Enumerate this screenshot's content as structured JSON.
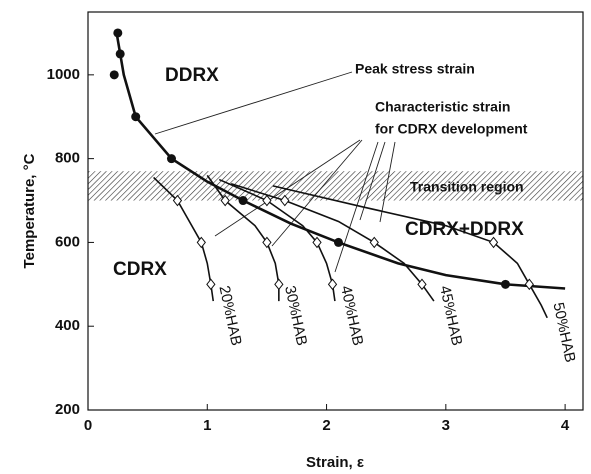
{
  "chart_data": {
    "type": "line",
    "xlabel": "Strain, ε",
    "ylabel": "Temperature, °C",
    "xlim": [
      0,
      4.15
    ],
    "ylim": [
      200,
      1150
    ],
    "xticks": [
      0,
      1,
      2,
      3,
      4
    ],
    "yticks": [
      200,
      400,
      600,
      800,
      1000
    ],
    "transition_band": [
      700,
      770
    ],
    "annotations": [
      "DDRX",
      "CDRX",
      "CDRX+DDRX",
      "Peak stress strain",
      "Characteristic strain",
      "for CDRX development",
      "Transition region"
    ],
    "series": [
      {
        "marker": "circle",
        "color": "#111111",
        "x": [
          0.25,
          0.27,
          0.22,
          0.4,
          0.7,
          1.3,
          2.1,
          3.5
        ],
        "values": [
          1100,
          1050,
          1000,
          900,
          800,
          700,
          600,
          500
        ]
      },
      {
        "marker": "none",
        "color": "#111111",
        "x": [
          0.24,
          0.3,
          0.4,
          0.55,
          0.7,
          1.0,
          1.3,
          1.7,
          2.1,
          2.6,
          3.0,
          3.5,
          4.0
        ],
        "values": [
          1100,
          1000,
          900,
          850,
          800,
          745,
          700,
          645,
          600,
          550,
          522,
          500,
          490
        ]
      },
      {
        "name": "20%HAB",
        "marker": "diamond",
        "color": "#111111",
        "x": [
          0.55,
          0.75,
          0.95,
          1.0,
          1.03,
          1.05
        ],
        "values": [
          755,
          700,
          600,
          550,
          500,
          460
        ]
      },
      {
        "name": "30%HAB",
        "marker": "diamond",
        "color": "#111111",
        "x": [
          1.0,
          1.15,
          1.4,
          1.5,
          1.57,
          1.6,
          1.6
        ],
        "values": [
          760,
          700,
          640,
          600,
          550,
          500,
          460
        ]
      },
      {
        "name": "40%HAB",
        "marker": "diamond",
        "color": "#111111",
        "x": [
          1.1,
          1.5,
          1.8,
          1.92,
          2.0,
          2.05,
          2.07
        ],
        "values": [
          750,
          700,
          640,
          600,
          550,
          500,
          460
        ]
      },
      {
        "name": "45%HAB",
        "marker": "diamond",
        "color": "#111111",
        "x": [
          1.2,
          1.65,
          2.1,
          2.4,
          2.65,
          2.8,
          2.9
        ],
        "values": [
          740,
          700,
          650,
          600,
          550,
          500,
          460
        ]
      },
      {
        "name": "50%HAB",
        "marker": "diamond",
        "color": "#111111",
        "x": [
          1.55,
          2.3,
          3.0,
          3.4,
          3.6,
          3.7,
          3.8,
          3.85
        ],
        "values": [
          735,
          685,
          640,
          600,
          550,
          500,
          450,
          420
        ]
      }
    ]
  }
}
